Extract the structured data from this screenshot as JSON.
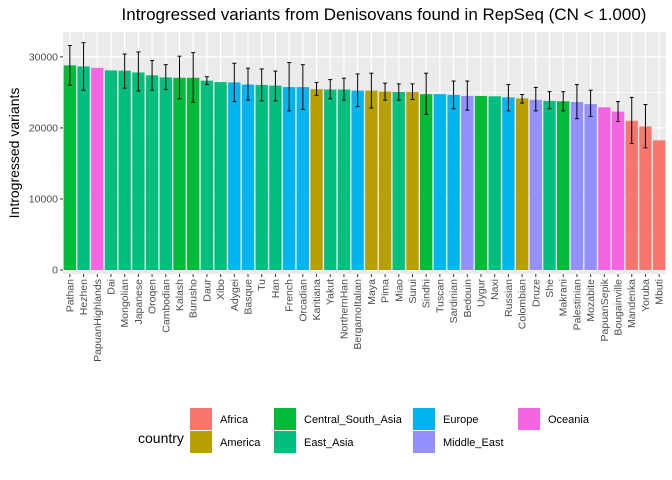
{
  "chart_data": {
    "type": "bar",
    "title": "Introgressed variants from Denisovans found in RepSeq (CN < 1.000)",
    "xlabel": "",
    "ylabel": "Introgressed variants",
    "ylim": [
      0,
      33500
    ],
    "yticks": [
      0,
      10000,
      20000,
      30000
    ],
    "grid": true,
    "legend_title": "country",
    "legend_position": "bottom",
    "groups": [
      {
        "name": "Africa",
        "color": "#F8766D"
      },
      {
        "name": "America",
        "color": "#B79F00"
      },
      {
        "name": "Central_South_Asia",
        "color": "#00BA38"
      },
      {
        "name": "East_Asia",
        "color": "#00BF7D"
      },
      {
        "name": "Europe",
        "color": "#00B4F0"
      },
      {
        "name": "Middle_East",
        "color": "#9590FF"
      },
      {
        "name": "Oceania",
        "color": "#F564E3"
      }
    ],
    "bars": [
      {
        "label": "Pathan",
        "group": "Central_South_Asia",
        "value": 28800,
        "err": [
          26000,
          31600
        ]
      },
      {
        "label": "Hezhen",
        "group": "East_Asia",
        "value": 28650,
        "err": [
          25300,
          32000
        ]
      },
      {
        "label": "PapuanHighlands",
        "group": "Oceania",
        "value": 28450,
        "err": null
      },
      {
        "label": "Dai",
        "group": "East_Asia",
        "value": 28100,
        "err": null
      },
      {
        "label": "Mongolian",
        "group": "East_Asia",
        "value": 28050,
        "err": [
          25600,
          30400
        ]
      },
      {
        "label": "Japanese",
        "group": "East_Asia",
        "value": 27800,
        "err": [
          25200,
          30700
        ]
      },
      {
        "label": "Oroqen",
        "group": "East_Asia",
        "value": 27400,
        "err": [
          25300,
          29500
        ]
      },
      {
        "label": "Cambodian",
        "group": "East_Asia",
        "value": 27100,
        "err": [
          25400,
          28900
        ]
      },
      {
        "label": "Kalash",
        "group": "Central_South_Asia",
        "value": 27050,
        "err": [
          24100,
          30100
        ]
      },
      {
        "label": "Burusho",
        "group": "Central_South_Asia",
        "value": 27050,
        "err": [
          23600,
          30600
        ]
      },
      {
        "label": "Daur",
        "group": "East_Asia",
        "value": 26650,
        "err": [
          26100,
          27200
        ]
      },
      {
        "label": "Xibo",
        "group": "East_Asia",
        "value": 26450,
        "err": null
      },
      {
        "label": "Adygei",
        "group": "Europe",
        "value": 26400,
        "err": [
          23700,
          29100
        ]
      },
      {
        "label": "Basque",
        "group": "Europe",
        "value": 26100,
        "err": [
          23900,
          28400
        ]
      },
      {
        "label": "Tu",
        "group": "East_Asia",
        "value": 26050,
        "err": [
          23800,
          28300
        ]
      },
      {
        "label": "Han",
        "group": "East_Asia",
        "value": 25950,
        "err": [
          23800,
          28000
        ]
      },
      {
        "label": "French",
        "group": "Europe",
        "value": 25750,
        "err": [
          22400,
          29200
        ]
      },
      {
        "label": "Orcadian",
        "group": "Europe",
        "value": 25750,
        "err": [
          22600,
          28900
        ]
      },
      {
        "label": "Karitiana",
        "group": "America",
        "value": 25450,
        "err": [
          24600,
          26400
        ]
      },
      {
        "label": "Yakut",
        "group": "East_Asia",
        "value": 25400,
        "err": [
          24100,
          26800
        ]
      },
      {
        "label": "NorthernHan",
        "group": "East_Asia",
        "value": 25400,
        "err": [
          23900,
          27000
        ]
      },
      {
        "label": "BergamoItalian",
        "group": "Europe",
        "value": 25250,
        "err": [
          23000,
          27600
        ]
      },
      {
        "label": "Maya",
        "group": "America",
        "value": 25250,
        "err": [
          22800,
          27700
        ]
      },
      {
        "label": "Pima",
        "group": "America",
        "value": 25100,
        "err": [
          23900,
          26300
        ]
      },
      {
        "label": "Miao",
        "group": "East_Asia",
        "value": 25050,
        "err": [
          23900,
          26200
        ]
      },
      {
        "label": "Surui",
        "group": "America",
        "value": 25050,
        "err": [
          24000,
          26200
        ]
      },
      {
        "label": "Sindhi",
        "group": "Central_South_Asia",
        "value": 24750,
        "err": [
          21900,
          27700
        ]
      },
      {
        "label": "Tuscan",
        "group": "Europe",
        "value": 24750,
        "err": null
      },
      {
        "label": "Sardinian",
        "group": "Europe",
        "value": 24650,
        "err": [
          22700,
          26600
        ]
      },
      {
        "label": "Bedouin",
        "group": "Middle_East",
        "value": 24500,
        "err": [
          22500,
          26600
        ]
      },
      {
        "label": "Uygur",
        "group": "Central_South_Asia",
        "value": 24500,
        "err": null
      },
      {
        "label": "Naxi",
        "group": "East_Asia",
        "value": 24450,
        "err": null
      },
      {
        "label": "Russian",
        "group": "Europe",
        "value": 24300,
        "err": [
          22400,
          26100
        ]
      },
      {
        "label": "Colombian",
        "group": "America",
        "value": 24150,
        "err": [
          23500,
          24700
        ]
      },
      {
        "label": "Druze",
        "group": "Middle_East",
        "value": 23950,
        "err": [
          22400,
          25700
        ]
      },
      {
        "label": "She",
        "group": "East_Asia",
        "value": 23800,
        "err": [
          22700,
          25100
        ]
      },
      {
        "label": "Makrani",
        "group": "Central_South_Asia",
        "value": 23750,
        "err": [
          22400,
          25100
        ]
      },
      {
        "label": "Palestinian",
        "group": "Middle_East",
        "value": 23650,
        "err": [
          21300,
          26100
        ]
      },
      {
        "label": "Mozabite",
        "group": "Middle_East",
        "value": 23350,
        "err": [
          21600,
          25300
        ]
      },
      {
        "label": "PapuanSepik",
        "group": "Oceania",
        "value": 22900,
        "err": null
      },
      {
        "label": "Bougainville",
        "group": "Oceania",
        "value": 22300,
        "err": [
          20900,
          23700
        ]
      },
      {
        "label": "Mandenka",
        "group": "Africa",
        "value": 21000,
        "err": [
          17800,
          24300
        ]
      },
      {
        "label": "Yoruba",
        "group": "Africa",
        "value": 20200,
        "err": [
          17200,
          23300
        ]
      },
      {
        "label": "Mbuti",
        "group": "Africa",
        "value": 18250,
        "err": null
      }
    ]
  }
}
